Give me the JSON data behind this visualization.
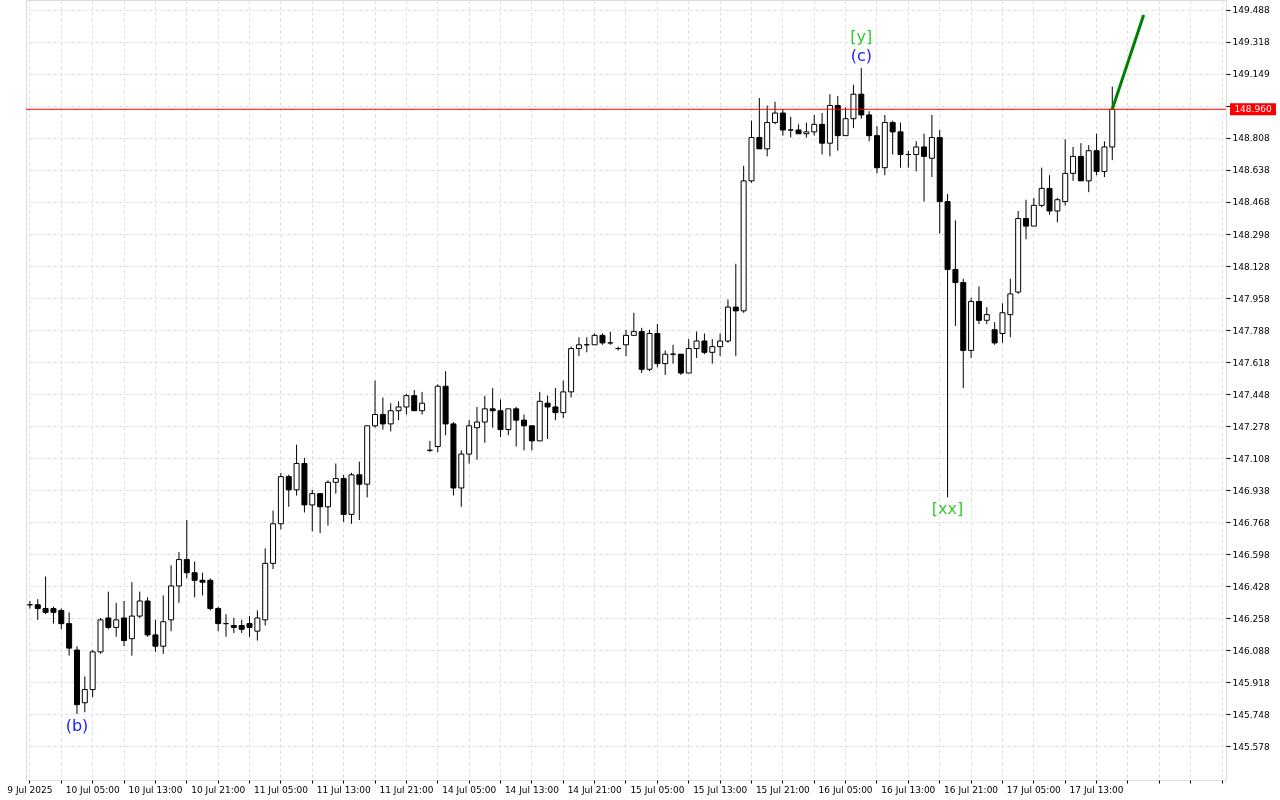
{
  "chart_data": {
    "type": "candlestick",
    "categories": [
      "9 Jul 2025",
      null,
      null,
      null,
      null,
      null,
      null,
      null,
      "10 Jul 05:00",
      null,
      null,
      null,
      null,
      null,
      null,
      null,
      "10 Jul 13:00",
      null,
      null,
      null,
      null,
      null,
      null,
      null,
      "10 Jul 21:00",
      null,
      null,
      null,
      null,
      null,
      null,
      null,
      "11 Jul 05:00",
      null,
      null,
      null,
      null,
      null,
      null,
      null,
      "11 Jul 13:00",
      null,
      null,
      null,
      null,
      null,
      null,
      null,
      "11 Jul 21:00",
      null,
      null,
      null,
      null,
      null,
      null,
      null,
      "14 Jul 05:00",
      null,
      null,
      null,
      null,
      null,
      null,
      null,
      "14 Jul 13:00",
      null,
      null,
      null,
      null,
      null,
      null,
      null,
      "14 Jul 21:00",
      null,
      null,
      null,
      null,
      null,
      null,
      null,
      "15 Jul 05:00",
      null,
      null,
      null,
      null,
      null,
      null,
      null,
      "15 Jul 13:00",
      null,
      null,
      null,
      null,
      null,
      null,
      null,
      "15 Jul 21:00",
      null,
      null,
      null,
      null,
      null,
      null,
      null,
      "16 Jul 05:00",
      null,
      null,
      null,
      null,
      null,
      null,
      null,
      "16 Jul 13:00",
      null,
      null,
      null,
      null,
      null,
      null,
      null,
      "16 Jul 21:00",
      null,
      null,
      null,
      null,
      null,
      null,
      null,
      "17 Jul 05:00",
      null,
      null,
      null,
      null,
      null,
      null,
      null,
      "17 Jul 13:00",
      null,
      null,
      null,
      null,
      null,
      null,
      null,
      null,
      null,
      null,
      null,
      null,
      null,
      null,
      null,
      null
    ],
    "ohlc": [
      [
        146.33,
        146.35,
        146.31,
        146.33
      ],
      [
        146.33,
        146.36,
        146.25,
        146.31
      ],
      [
        146.31,
        146.48,
        146.28,
        146.29
      ],
      [
        146.31,
        146.32,
        146.23,
        146.29
      ],
      [
        146.3,
        146.31,
        146.2,
        146.23
      ],
      [
        146.23,
        146.29,
        146.06,
        146.1
      ],
      [
        146.09,
        146.11,
        145.75,
        145.8
      ],
      [
        145.81,
        145.95,
        145.76,
        145.88
      ],
      [
        145.88,
        146.09,
        145.84,
        146.08
      ],
      [
        146.08,
        146.26,
        146.07,
        146.25
      ],
      [
        146.26,
        146.4,
        146.2,
        146.21
      ],
      [
        146.21,
        146.34,
        146.16,
        146.25
      ],
      [
        146.26,
        146.35,
        146.11,
        146.14
      ],
      [
        146.15,
        146.45,
        146.06,
        146.27
      ],
      [
        146.27,
        146.4,
        146.26,
        146.35
      ],
      [
        146.35,
        146.37,
        146.16,
        146.17
      ],
      [
        146.17,
        146.25,
        146.08,
        146.11
      ],
      [
        146.11,
        146.38,
        146.07,
        146.24
      ],
      [
        146.25,
        146.54,
        146.19,
        146.43
      ],
      [
        146.43,
        146.61,
        146.34,
        146.57
      ],
      [
        146.57,
        146.78,
        146.47,
        146.5
      ],
      [
        146.5,
        146.56,
        146.37,
        146.46
      ],
      [
        146.46,
        146.5,
        146.38,
        146.45
      ],
      [
        146.46,
        146.47,
        146.3,
        146.31
      ],
      [
        146.31,
        146.32,
        146.19,
        146.23
      ],
      [
        146.23,
        146.28,
        146.16,
        146.23
      ],
      [
        146.22,
        146.26,
        146.18,
        146.21
      ],
      [
        146.22,
        146.25,
        146.18,
        146.2
      ],
      [
        146.23,
        146.27,
        146.16,
        146.21
      ],
      [
        146.19,
        146.3,
        146.14,
        146.26
      ],
      [
        146.25,
        146.63,
        146.22,
        146.55
      ],
      [
        146.55,
        146.83,
        146.52,
        146.76
      ],
      [
        146.76,
        147.03,
        146.73,
        147.01
      ],
      [
        147.01,
        147.02,
        146.85,
        146.94
      ],
      [
        146.94,
        147.18,
        146.91,
        147.08
      ],
      [
        147.08,
        147.11,
        146.82,
        146.86
      ],
      [
        146.86,
        146.94,
        146.72,
        146.92
      ],
      [
        146.92,
        146.92,
        146.71,
        146.85
      ],
      [
        146.85,
        146.99,
        146.75,
        146.98
      ],
      [
        146.98,
        147.08,
        146.92,
        147.0
      ],
      [
        147.0,
        147.02,
        146.77,
        146.81
      ],
      [
        146.81,
        147.03,
        146.76,
        147.02
      ],
      [
        147.02,
        147.09,
        146.78,
        146.97
      ],
      [
        146.97,
        147.28,
        146.9,
        147.28
      ],
      [
        147.28,
        147.52,
        147.27,
        147.34
      ],
      [
        147.34,
        147.43,
        147.26,
        147.29
      ],
      [
        147.29,
        147.4,
        147.25,
        147.36
      ],
      [
        147.36,
        147.41,
        147.31,
        147.38
      ],
      [
        147.38,
        147.45,
        147.34,
        147.44
      ],
      [
        147.44,
        147.47,
        147.36,
        147.36
      ],
      [
        147.36,
        147.46,
        147.34,
        147.4
      ],
      [
        147.15,
        147.2,
        147.14,
        147.15
      ],
      [
        147.17,
        147.5,
        147.14,
        147.49
      ],
      [
        147.49,
        147.57,
        147.23,
        147.29
      ],
      [
        147.29,
        147.3,
        146.91,
        146.95
      ],
      [
        146.95,
        147.15,
        146.85,
        147.13
      ],
      [
        147.13,
        147.31,
        147.08,
        147.28
      ],
      [
        147.27,
        147.38,
        147.1,
        147.3
      ],
      [
        147.3,
        147.44,
        147.19,
        147.37
      ],
      [
        147.37,
        147.48,
        147.27,
        147.36
      ],
      [
        147.36,
        147.42,
        147.22,
        147.26
      ],
      [
        147.26,
        147.37,
        147.23,
        147.37
      ],
      [
        147.37,
        147.38,
        147.17,
        147.31
      ],
      [
        147.31,
        147.34,
        147.15,
        147.28
      ],
      [
        147.28,
        147.28,
        147.15,
        147.2
      ],
      [
        147.2,
        147.46,
        147.2,
        147.41
      ],
      [
        147.4,
        147.44,
        147.21,
        147.38
      ],
      [
        147.38,
        147.48,
        147.31,
        147.35
      ],
      [
        147.35,
        147.52,
        147.32,
        147.46
      ],
      [
        147.46,
        147.7,
        147.43,
        147.69
      ],
      [
        147.69,
        147.75,
        147.65,
        147.71
      ],
      [
        147.71,
        147.75,
        147.67,
        147.71
      ],
      [
        147.71,
        147.77,
        147.71,
        147.76
      ],
      [
        147.76,
        147.77,
        147.71,
        147.72
      ],
      [
        147.72,
        147.78,
        147.71,
        147.72
      ],
      [
        147.69,
        147.7,
        147.68,
        147.69
      ],
      [
        147.71,
        147.79,
        147.65,
        147.76
      ],
      [
        147.76,
        147.88,
        147.76,
        147.78
      ],
      [
        147.78,
        147.8,
        147.56,
        147.58
      ],
      [
        147.58,
        147.79,
        147.57,
        147.77
      ],
      [
        147.77,
        147.82,
        147.59,
        147.61
      ],
      [
        147.61,
        147.68,
        147.55,
        147.66
      ],
      [
        147.66,
        147.71,
        147.61,
        147.66
      ],
      [
        147.66,
        147.66,
        147.55,
        147.56
      ],
      [
        147.56,
        147.74,
        147.56,
        147.69
      ],
      [
        147.69,
        147.78,
        147.64,
        147.73
      ],
      [
        147.73,
        147.77,
        147.66,
        147.67
      ],
      [
        147.67,
        147.74,
        147.61,
        147.7
      ],
      [
        147.7,
        147.77,
        147.65,
        147.73
      ],
      [
        147.73,
        147.95,
        147.72,
        147.91
      ],
      [
        147.91,
        148.14,
        147.65,
        147.89
      ],
      [
        147.89,
        148.66,
        147.88,
        148.58
      ],
      [
        148.58,
        148.9,
        148.57,
        148.81
      ],
      [
        148.81,
        149.02,
        148.75,
        148.75
      ],
      [
        148.75,
        148.98,
        148.71,
        148.89
      ],
      [
        148.89,
        149.0,
        148.88,
        148.94
      ],
      [
        148.94,
        148.96,
        148.82,
        148.85
      ],
      [
        148.85,
        148.92,
        148.81,
        148.85
      ],
      [
        148.85,
        148.88,
        148.83,
        148.83
      ],
      [
        148.83,
        148.89,
        148.81,
        148.84
      ],
      [
        148.84,
        148.93,
        148.82,
        148.88
      ],
      [
        148.88,
        148.94,
        148.72,
        148.78
      ],
      [
        148.78,
        149.04,
        148.71,
        148.98
      ],
      [
        148.98,
        149.03,
        148.74,
        148.82
      ],
      [
        148.82,
        148.97,
        148.82,
        148.91
      ],
      [
        148.91,
        149.09,
        148.86,
        149.04
      ],
      [
        149.04,
        149.18,
        148.91,
        148.93
      ],
      [
        148.93,
        148.95,
        148.79,
        148.82
      ],
      [
        148.82,
        148.87,
        148.62,
        148.65
      ],
      [
        148.65,
        148.93,
        148.61,
        148.89
      ],
      [
        148.89,
        148.9,
        148.72,
        148.84
      ],
      [
        148.84,
        148.89,
        148.65,
        148.72
      ],
      [
        148.72,
        148.74,
        148.65,
        148.72
      ],
      [
        148.72,
        148.79,
        148.63,
        148.76
      ],
      [
        148.76,
        148.83,
        148.47,
        148.71
      ],
      [
        148.7,
        148.93,
        148.6,
        148.81
      ],
      [
        148.81,
        148.85,
        148.3,
        148.47
      ],
      [
        148.47,
        148.51,
        146.9,
        148.11
      ],
      [
        148.11,
        148.37,
        147.81,
        148.04
      ],
      [
        148.04,
        148.06,
        147.48,
        147.68
      ],
      [
        147.68,
        147.96,
        147.64,
        147.94
      ],
      [
        147.94,
        148.02,
        147.82,
        147.84
      ],
      [
        147.84,
        147.91,
        147.82,
        147.87
      ],
      [
        147.79,
        147.83,
        147.71,
        147.72
      ],
      [
        147.77,
        147.93,
        147.72,
        147.88
      ],
      [
        147.87,
        148.06,
        147.75,
        147.98
      ],
      [
        147.99,
        148.42,
        147.98,
        148.38
      ],
      [
        148.38,
        148.48,
        148.27,
        148.34
      ],
      [
        148.34,
        148.49,
        148.34,
        148.45
      ],
      [
        148.45,
        148.65,
        148.44,
        148.54
      ],
      [
        148.54,
        148.61,
        148.4,
        148.42
      ],
      [
        148.42,
        148.49,
        148.36,
        148.48
      ],
      [
        148.47,
        148.8,
        148.45,
        148.62
      ],
      [
        148.62,
        148.76,
        148.58,
        148.71
      ],
      [
        148.71,
        148.78,
        148.58,
        148.58
      ],
      [
        148.58,
        148.77,
        148.52,
        148.74
      ],
      [
        148.74,
        148.83,
        148.61,
        148.63
      ],
      [
        148.63,
        148.79,
        148.6,
        148.76
      ],
      [
        148.76,
        149.08,
        148.69,
        148.96
      ],
      null,
      null,
      null,
      null,
      null,
      null,
      null,
      null,
      null,
      null,
      null,
      null,
      null,
      null
    ],
    "series": [
      {
        "type": "line",
        "color": "#008000",
        "values": [
          null,
          null,
          null,
          null,
          null,
          null,
          null,
          null,
          null,
          null,
          null,
          null,
          null,
          null,
          null,
          null,
          null,
          null,
          null,
          null,
          null,
          null,
          null,
          null,
          null,
          null,
          null,
          null,
          null,
          null,
          null,
          null,
          null,
          null,
          null,
          null,
          null,
          null,
          null,
          null,
          null,
          null,
          null,
          null,
          null,
          null,
          null,
          null,
          null,
          null,
          null,
          null,
          null,
          null,
          null,
          null,
          null,
          null,
          null,
          null,
          null,
          null,
          null,
          null,
          null,
          null,
          null,
          null,
          null,
          null,
          null,
          null,
          null,
          null,
          null,
          null,
          null,
          null,
          null,
          null,
          null,
          null,
          null,
          null,
          null,
          null,
          null,
          null,
          null,
          null,
          null,
          null,
          null,
          null,
          null,
          null,
          null,
          null,
          null,
          null,
          null,
          null,
          null,
          null,
          null,
          null,
          null,
          null,
          null,
          null,
          null,
          null,
          null,
          null,
          null,
          null,
          null,
          null,
          null,
          null,
          null,
          null,
          null,
          null,
          null,
          null,
          null,
          null,
          null,
          null,
          null,
          null,
          null,
          null,
          null,
          null,
          null,
          null,
          148.96,
          null,
          null,
          null,
          149.46,
          null,
          null,
          null,
          null,
          null,
          null,
          null,
          null,
          null,
          null
        ]
      }
    ],
    "ylim": [
      145.4,
      149.54
    ],
    "yticks": [
      149.488,
      149.318,
      149.149,
      {
        "value": 148.979,
        "label": null
      },
      148.808,
      148.638,
      148.468,
      148.298,
      148.128,
      147.958,
      147.788,
      147.618,
      147.448,
      147.278,
      147.108,
      146.938,
      146.768,
      146.598,
      146.428,
      146.258,
      146.088,
      145.918,
      145.748,
      145.578
    ],
    "ref_lines": [
      {
        "axis": "y",
        "value": 148.96,
        "label": "148.960",
        "color": "#ff0000"
      }
    ],
    "annotations": [
      "(b)",
      "(c)",
      "[y]",
      "[xx]"
    ],
    "grid": true
  }
}
